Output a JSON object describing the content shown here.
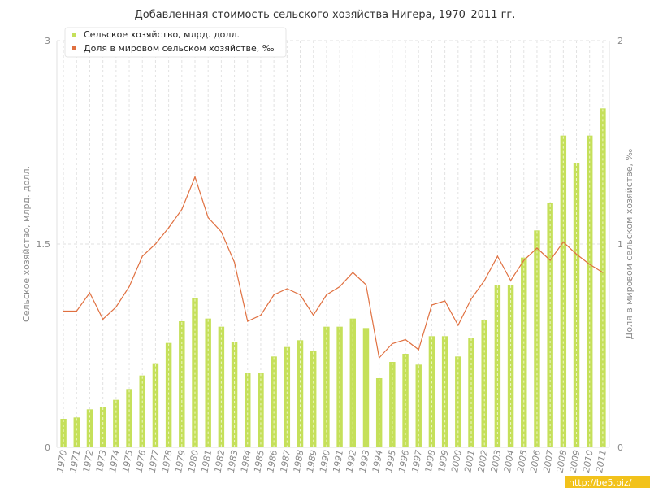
{
  "chart_data": {
    "type": "bar",
    "title": "Добавленная стоимость сельского хозяйства Нигера, 1970–2011 гг.",
    "ylabel": "Сельское хозяйство, млрд. долл.",
    "y2label": "Доля в мировом сельском хозяйстве, ‰",
    "ylim": [
      0,
      3
    ],
    "y2lim": [
      0,
      2
    ],
    "yticks": [
      "0",
      "1.5",
      "3"
    ],
    "y2ticks": [
      "0",
      "1",
      "2"
    ],
    "grid": true,
    "legend_position": "top-left",
    "categories": [
      "1970",
      "1971",
      "1972",
      "1973",
      "1974",
      "1975",
      "1976",
      "1977",
      "1978",
      "1979",
      "1980",
      "1981",
      "1982",
      "1983",
      "1984",
      "1985",
      "1986",
      "1987",
      "1988",
      "1989",
      "1990",
      "1991",
      "1992",
      "1993",
      "1994",
      "1995",
      "1996",
      "1997",
      "1998",
      "1999",
      "2000",
      "2001",
      "2002",
      "2003",
      "2004",
      "2005",
      "2006",
      "2007",
      "2008",
      "2009",
      "2010",
      "2011"
    ],
    "series": [
      {
        "name": "Сельское хозяйство, млрд. долл.",
        "type": "bar",
        "axis": "left",
        "color": "#c5e05a",
        "values": [
          0.21,
          0.22,
          0.28,
          0.3,
          0.35,
          0.43,
          0.53,
          0.62,
          0.77,
          0.93,
          1.1,
          0.95,
          0.89,
          0.78,
          0.55,
          0.55,
          0.67,
          0.74,
          0.79,
          0.71,
          0.89,
          0.89,
          0.95,
          0.88,
          0.51,
          0.63,
          0.69,
          0.61,
          0.82,
          0.82,
          0.67,
          0.81,
          0.94,
          1.2,
          1.2,
          1.4,
          1.6,
          1.8,
          2.3,
          2.1,
          2.3,
          2.5
        ]
      },
      {
        "name": "Доля в мировом сельском хозяйстве, ‰",
        "type": "line",
        "axis": "right",
        "color": "#e07040",
        "values": [
          0.67,
          0.67,
          0.76,
          0.63,
          0.69,
          0.79,
          0.94,
          1.0,
          1.08,
          1.17,
          1.33,
          1.13,
          1.06,
          0.91,
          0.62,
          0.65,
          0.75,
          0.78,
          0.75,
          0.65,
          0.75,
          0.79,
          0.86,
          0.8,
          0.44,
          0.51,
          0.53,
          0.48,
          0.7,
          0.72,
          0.6,
          0.73,
          0.82,
          0.94,
          0.82,
          0.92,
          0.98,
          0.92,
          1.01,
          0.95,
          0.9,
          0.86
        ]
      }
    ]
  },
  "watermark": "http://be5.biz/",
  "colors": {
    "grid": "#e2e2e2",
    "axis_text": "#8a8a8a",
    "watermark_bg": "#f2c21b"
  }
}
